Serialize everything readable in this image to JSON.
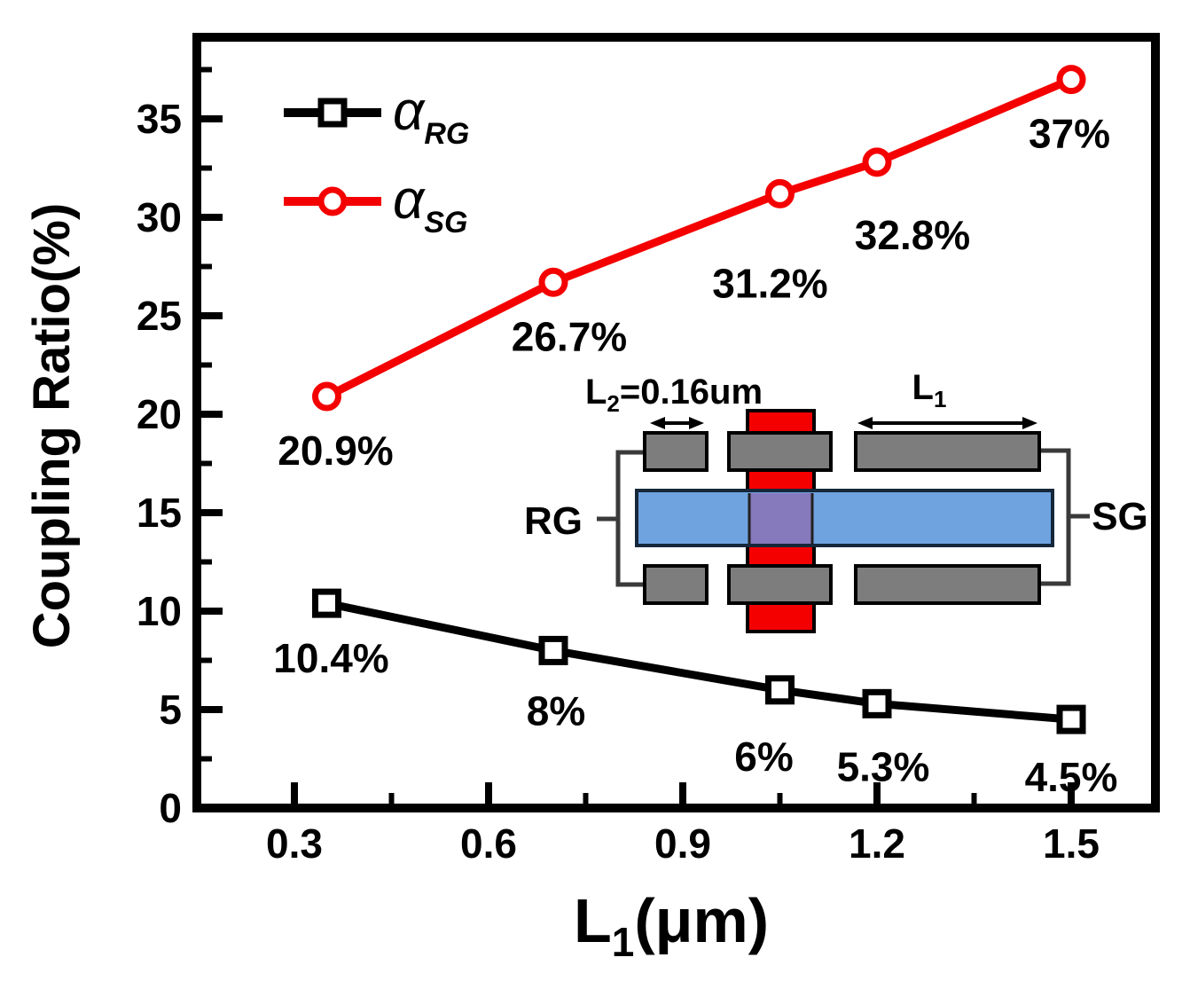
{
  "figure": {
    "background": "#ffffff"
  },
  "chart_data": {
    "type": "line",
    "title": "",
    "xlabel": "L1(μm)",
    "xlabel_parts": {
      "main": "L",
      "sub": "1",
      "rest": "(μm)"
    },
    "ylabel": "Coupling Ratio(%)",
    "xlim": [
      0.15,
      1.63
    ],
    "ylim": [
      0,
      39.1
    ],
    "grid": false,
    "legend_position": "upper-left-inside",
    "x_ticks": [
      0.3,
      0.6,
      0.9,
      1.2,
      1.5
    ],
    "x_tick_labels": [
      "0.3",
      "0.6",
      "0.9",
      "1.2",
      "1.5"
    ],
    "x_minor_ticks": [
      0.45,
      0.75,
      1.05,
      1.35
    ],
    "y_ticks": [
      0,
      5,
      10,
      15,
      20,
      25,
      30,
      35
    ],
    "y_tick_labels": [
      "0",
      "5",
      "10",
      "15",
      "20",
      "25",
      "30",
      "35"
    ],
    "y_minor_ticks": [
      2.5,
      7.5,
      12.5,
      17.5,
      22.5,
      27.5,
      32.5,
      37.5
    ],
    "x": [
      0.35,
      0.7,
      1.05,
      1.2,
      1.5
    ],
    "series": [
      {
        "name": "alpha_RG",
        "legend": {
          "symbol": "α",
          "sub": "RG"
        },
        "color": "#000000",
        "marker": "square",
        "values": [
          10.4,
          8,
          6,
          5.3,
          4.5
        ],
        "point_labels": [
          "10.4%",
          "8%",
          "6%",
          "5.3%",
          "4.5%"
        ]
      },
      {
        "name": "alpha_SG",
        "legend": {
          "symbol": "α",
          "sub": "SG"
        },
        "color": "#f50000",
        "marker": "circle",
        "values": [
          20.9,
          26.7,
          31.2,
          32.8,
          37
        ],
        "point_labels": [
          "20.9%",
          "26.7%",
          "31.2%",
          "32.8%",
          "37%"
        ]
      }
    ]
  },
  "inset": {
    "l2_parts": {
      "main": "L",
      "sub": "2",
      "rest": "=0.16um"
    },
    "l1_parts": {
      "main": "L",
      "sub": "1"
    },
    "rg_label": "RG",
    "sg_label": "SG",
    "colors": {
      "gray": "#7d7d7d",
      "red": "#f50000",
      "blue": "#6fa3e0",
      "purple": "#8679bc",
      "outline": "#000000",
      "wire": "#3a3a3a"
    }
  }
}
